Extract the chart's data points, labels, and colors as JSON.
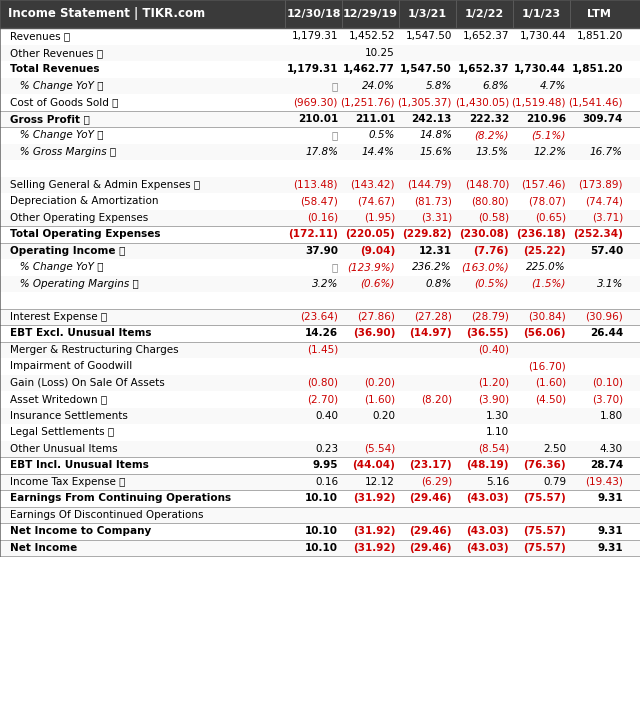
{
  "header_bg": "#3a3a3a",
  "header_text_color": "#ffffff",
  "header_label": "Income Statement | TIKR.com",
  "columns": [
    "12/30/18",
    "12/29/19",
    "1/3/21",
    "1/2/22",
    "1/1/23",
    "LTM"
  ],
  "col_header_bg": "#4a4a4a",
  "rows": [
    {
      "label": "Revenues ⓘ",
      "indent": 0,
      "bold": false,
      "values": [
        "1,179.31",
        "1,452.52",
        "1,547.50",
        "1,652.37",
        "1,730.44",
        "1,851.20"
      ],
      "colors": [
        "k",
        "k",
        "k",
        "k",
        "k",
        "k"
      ],
      "separator": false
    },
    {
      "label": "Other Revenues ⓘ",
      "indent": 0,
      "bold": false,
      "values": [
        "",
        "10.25",
        "",
        "",
        "",
        ""
      ],
      "colors": [
        "k",
        "k",
        "k",
        "k",
        "k",
        "k"
      ],
      "separator": false
    },
    {
      "label": "Total Revenues",
      "indent": 0,
      "bold": true,
      "values": [
        "1,179.31",
        "1,462.77",
        "1,547.50",
        "1,652.37",
        "1,730.44",
        "1,851.20"
      ],
      "colors": [
        "k",
        "k",
        "k",
        "k",
        "k",
        "k"
      ],
      "separator": false
    },
    {
      "label": "   % Change YoY ⓘ",
      "indent": 1,
      "bold": false,
      "italic": true,
      "values": [
        "🔒",
        "24.0%",
        "5.8%",
        "6.8%",
        "4.7%",
        ""
      ],
      "colors": [
        "k",
        "k",
        "k",
        "k",
        "k",
        "k"
      ],
      "separator": false
    },
    {
      "label": "Cost of Goods Sold ⓘ",
      "indent": 0,
      "bold": false,
      "values": [
        "(969.30)",
        "(1,251.76)",
        "(1,305.37)",
        "(1,430.05)",
        "(1,519.48)",
        "(1,541.46)"
      ],
      "colors": [
        "r",
        "r",
        "r",
        "r",
        "r",
        "r"
      ],
      "separator": false
    },
    {
      "label": "Gross Profit ⓘ",
      "indent": 0,
      "bold": true,
      "values": [
        "210.01",
        "211.01",
        "242.13",
        "222.32",
        "210.96",
        "309.74"
      ],
      "colors": [
        "k",
        "k",
        "k",
        "k",
        "k",
        "k"
      ],
      "separator": true
    },
    {
      "label": "   % Change YoY ⓘ",
      "indent": 1,
      "bold": false,
      "italic": true,
      "values": [
        "🔒",
        "0.5%",
        "14.8%",
        "(8.2%)",
        "(5.1%)",
        ""
      ],
      "colors": [
        "k",
        "k",
        "k",
        "r",
        "r",
        "k"
      ],
      "separator": false
    },
    {
      "label": "   % Gross Margins ⓘ",
      "indent": 1,
      "bold": false,
      "italic": true,
      "values": [
        "17.8%",
        "14.4%",
        "15.6%",
        "13.5%",
        "12.2%",
        "16.7%"
      ],
      "colors": [
        "k",
        "k",
        "k",
        "k",
        "k",
        "k"
      ],
      "separator": false
    },
    {
      "label": "",
      "indent": 0,
      "bold": false,
      "values": [
        "",
        "",
        "",
        "",
        "",
        ""
      ],
      "colors": [
        "k",
        "k",
        "k",
        "k",
        "k",
        "k"
      ],
      "separator": false
    },
    {
      "label": "Selling General & Admin Expenses ⓘ",
      "indent": 0,
      "bold": false,
      "values": [
        "(113.48)",
        "(143.42)",
        "(144.79)",
        "(148.70)",
        "(157.46)",
        "(173.89)"
      ],
      "colors": [
        "r",
        "r",
        "r",
        "r",
        "r",
        "r"
      ],
      "separator": false
    },
    {
      "label": "Depreciation & Amortization",
      "indent": 0,
      "bold": false,
      "values": [
        "(58.47)",
        "(74.67)",
        "(81.73)",
        "(80.80)",
        "(78.07)",
        "(74.74)"
      ],
      "colors": [
        "r",
        "r",
        "r",
        "r",
        "r",
        "r"
      ],
      "separator": false
    },
    {
      "label": "Other Operating Expenses",
      "indent": 0,
      "bold": false,
      "values": [
        "(0.16)",
        "(1.95)",
        "(3.31)",
        "(0.58)",
        "(0.65)",
        "(3.71)"
      ],
      "colors": [
        "r",
        "r",
        "r",
        "r",
        "r",
        "r"
      ],
      "separator": false
    },
    {
      "label": "Total Operating Expenses",
      "indent": 0,
      "bold": true,
      "values": [
        "(172.11)",
        "(220.05)",
        "(229.82)",
        "(230.08)",
        "(236.18)",
        "(252.34)"
      ],
      "colors": [
        "r",
        "r",
        "r",
        "r",
        "r",
        "r"
      ],
      "separator": true
    },
    {
      "label": "Operating Income ⓘ",
      "indent": 0,
      "bold": true,
      "values": [
        "37.90",
        "(9.04)",
        "12.31",
        "(7.76)",
        "(25.22)",
        "57.40"
      ],
      "colors": [
        "k",
        "r",
        "k",
        "r",
        "r",
        "k"
      ],
      "separator": false
    },
    {
      "label": "   % Change YoY ⓘ",
      "indent": 1,
      "bold": false,
      "italic": true,
      "values": [
        "🔒",
        "(123.9%)",
        "236.2%",
        "(163.0%)",
        "225.0%",
        ""
      ],
      "colors": [
        "k",
        "r",
        "k",
        "r",
        "k",
        "k"
      ],
      "separator": false
    },
    {
      "label": "   % Operating Margins ⓘ",
      "indent": 1,
      "bold": false,
      "italic": true,
      "values": [
        "3.2%",
        "(0.6%)",
        "0.8%",
        "(0.5%)",
        "(1.5%)",
        "3.1%"
      ],
      "colors": [
        "k",
        "r",
        "k",
        "r",
        "r",
        "k"
      ],
      "separator": false
    },
    {
      "label": "",
      "indent": 0,
      "bold": false,
      "values": [
        "",
        "",
        "",
        "",
        "",
        ""
      ],
      "colors": [
        "k",
        "k",
        "k",
        "k",
        "k",
        "k"
      ],
      "separator": false
    },
    {
      "label": "Interest Expense ⓘ",
      "indent": 0,
      "bold": false,
      "values": [
        "(23.64)",
        "(27.86)",
        "(27.28)",
        "(28.79)",
        "(30.84)",
        "(30.96)"
      ],
      "colors": [
        "r",
        "r",
        "r",
        "r",
        "r",
        "r"
      ],
      "separator": true
    },
    {
      "label": "EBT Excl. Unusual Items",
      "indent": 0,
      "bold": true,
      "values": [
        "14.26",
        "(36.90)",
        "(14.97)",
        "(36.55)",
        "(56.06)",
        "26.44"
      ],
      "colors": [
        "k",
        "r",
        "r",
        "r",
        "r",
        "k"
      ],
      "separator": true
    },
    {
      "label": "Merger & Restructuring Charges",
      "indent": 0,
      "bold": false,
      "values": [
        "(1.45)",
        "",
        "",
        "(0.40)",
        "",
        ""
      ],
      "colors": [
        "r",
        "r",
        "r",
        "r",
        "r",
        "r"
      ],
      "separator": false
    },
    {
      "label": "Impairment of Goodwill",
      "indent": 0,
      "bold": false,
      "values": [
        "",
        "",
        "",
        "",
        "(16.70)",
        ""
      ],
      "colors": [
        "r",
        "r",
        "r",
        "r",
        "r",
        "r"
      ],
      "separator": false
    },
    {
      "label": "Gain (Loss) On Sale Of Assets",
      "indent": 0,
      "bold": false,
      "values": [
        "(0.80)",
        "(0.20)",
        "",
        "(1.20)",
        "(1.60)",
        "(0.10)"
      ],
      "colors": [
        "r",
        "r",
        "r",
        "r",
        "r",
        "r"
      ],
      "separator": false
    },
    {
      "label": "Asset Writedown ⓘ",
      "indent": 0,
      "bold": false,
      "values": [
        "(2.70)",
        "(1.60)",
        "(8.20)",
        "(3.90)",
        "(4.50)",
        "(3.70)"
      ],
      "colors": [
        "r",
        "r",
        "r",
        "r",
        "r",
        "r"
      ],
      "separator": false
    },
    {
      "label": "Insurance Settlements",
      "indent": 0,
      "bold": false,
      "values": [
        "0.40",
        "0.20",
        "",
        "1.30",
        "",
        "1.80"
      ],
      "colors": [
        "k",
        "k",
        "k",
        "k",
        "k",
        "k"
      ],
      "separator": false
    },
    {
      "label": "Legal Settlements ⓘ",
      "indent": 0,
      "bold": false,
      "values": [
        "",
        "",
        "",
        "1.10",
        "",
        ""
      ],
      "colors": [
        "k",
        "k",
        "k",
        "k",
        "k",
        "k"
      ],
      "separator": false
    },
    {
      "label": "Other Unusual Items",
      "indent": 0,
      "bold": false,
      "values": [
        "0.23",
        "(5.54)",
        "",
        "(8.54)",
        "2.50",
        "4.30"
      ],
      "colors": [
        "k",
        "r",
        "r",
        "r",
        "k",
        "k"
      ],
      "separator": false
    },
    {
      "label": "EBT Incl. Unusual Items",
      "indent": 0,
      "bold": true,
      "values": [
        "9.95",
        "(44.04)",
        "(23.17)",
        "(48.19)",
        "(76.36)",
        "28.74"
      ],
      "colors": [
        "k",
        "r",
        "r",
        "r",
        "r",
        "k"
      ],
      "separator": true
    },
    {
      "label": "Income Tax Expense ⓘ",
      "indent": 0,
      "bold": false,
      "values": [
        "0.16",
        "12.12",
        "(6.29)",
        "5.16",
        "0.79",
        "(19.43)"
      ],
      "colors": [
        "k",
        "k",
        "r",
        "k",
        "k",
        "r"
      ],
      "separator": false
    },
    {
      "label": "Earnings From Continuing Operations",
      "indent": 0,
      "bold": true,
      "values": [
        "10.10",
        "(31.92)",
        "(29.46)",
        "(43.03)",
        "(75.57)",
        "9.31"
      ],
      "colors": [
        "k",
        "r",
        "r",
        "r",
        "r",
        "k"
      ],
      "separator": true
    },
    {
      "label": "Earnings Of Discontinued Operations",
      "indent": 0,
      "bold": false,
      "values": [
        "",
        "",
        "",
        "",
        "",
        ""
      ],
      "colors": [
        "k",
        "k",
        "k",
        "k",
        "k",
        "k"
      ],
      "separator": false
    },
    {
      "label": "Net Income to Company",
      "indent": 0,
      "bold": true,
      "values": [
        "10.10",
        "(31.92)",
        "(29.46)",
        "(43.03)",
        "(75.57)",
        "9.31"
      ],
      "colors": [
        "k",
        "r",
        "r",
        "r",
        "r",
        "k"
      ],
      "separator": true
    },
    {
      "label": "Net Income",
      "indent": 0,
      "bold": true,
      "values": [
        "10.10",
        "(31.92)",
        "(29.46)",
        "(43.03)",
        "(75.57)",
        "9.31"
      ],
      "colors": [
        "k",
        "r",
        "r",
        "r",
        "r",
        "k"
      ],
      "separator": false
    }
  ]
}
